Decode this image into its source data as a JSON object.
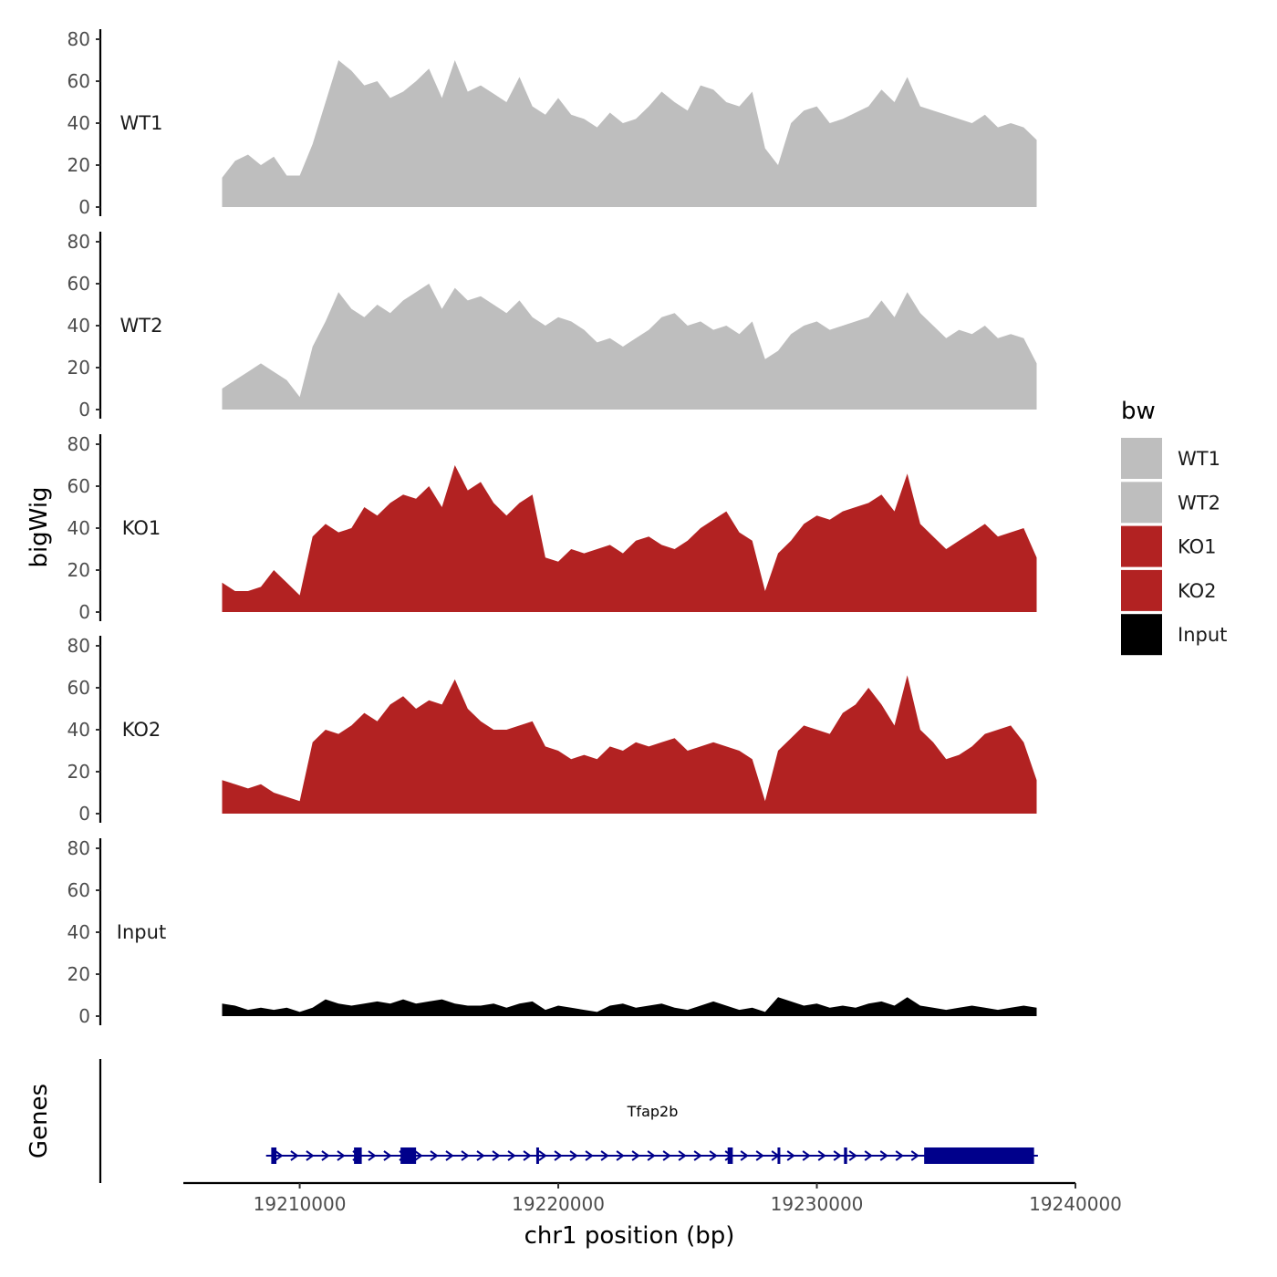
{
  "chart_data": {
    "type": "area",
    "title": "",
    "xlabel": "chr1 position (bp)",
    "ylabel": "bigWig",
    "gene_panel_label": "Genes",
    "xlim": [
      19205500,
      19240000
    ],
    "data_range": [
      19207000,
      19238500
    ],
    "ylim": [
      0,
      85
    ],
    "yticks": [
      0,
      20,
      40,
      60,
      80
    ],
    "xticks": [
      19210000,
      19220000,
      19230000,
      19240000
    ],
    "xtick_labels": [
      "19210000",
      "19220000",
      "19230000",
      "19240000"
    ],
    "legend": {
      "title": "bw",
      "position": "right",
      "entries": [
        {
          "label": "WT1",
          "color": "#bebebe"
        },
        {
          "label": "WT2",
          "color": "#bebebe"
        },
        {
          "label": "KO1",
          "color": "#b22222"
        },
        {
          "label": "KO2",
          "color": "#b22222"
        },
        {
          "label": "Input",
          "color": "#000000"
        }
      ]
    },
    "series": [
      {
        "name": "WT1",
        "color": "#bebebe",
        "x": [
          19207000,
          19207500,
          19208000,
          19208500,
          19209000,
          19209500,
          19210000,
          19210500,
          19211000,
          19211500,
          19212000,
          19212500,
          19213000,
          19213500,
          19214000,
          19214500,
          19215000,
          19215500,
          19216000,
          19216500,
          19217000,
          19217500,
          19218000,
          19218500,
          19219000,
          19219500,
          19220000,
          19220500,
          19221000,
          19221500,
          19222000,
          19222500,
          19223000,
          19223500,
          19224000,
          19224500,
          19225000,
          19225500,
          19226000,
          19226500,
          19227000,
          19227500,
          19228000,
          19228500,
          19229000,
          19229500,
          19230000,
          19230500,
          19231000,
          19231500,
          19232000,
          19232500,
          19233000,
          19233500,
          19234000,
          19234500,
          19235000,
          19235500,
          19236000,
          19236500,
          19237000,
          19237500,
          19238000,
          19238500
        ],
        "values": [
          14,
          22,
          25,
          20,
          24,
          15,
          15,
          30,
          50,
          70,
          65,
          58,
          60,
          52,
          55,
          60,
          66,
          52,
          70,
          55,
          58,
          54,
          50,
          62,
          48,
          44,
          52,
          44,
          42,
          38,
          45,
          40,
          42,
          48,
          55,
          50,
          46,
          58,
          56,
          50,
          48,
          55,
          28,
          20,
          40,
          46,
          48,
          40,
          42,
          45,
          48,
          56,
          50,
          62,
          48,
          46,
          44,
          42,
          40,
          44,
          38,
          40,
          38,
          32
        ]
      },
      {
        "name": "WT2",
        "color": "#bebebe",
        "x": [
          19207000,
          19207500,
          19208000,
          19208500,
          19209000,
          19209500,
          19210000,
          19210500,
          19211000,
          19211500,
          19212000,
          19212500,
          19213000,
          19213500,
          19214000,
          19214500,
          19215000,
          19215500,
          19216000,
          19216500,
          19217000,
          19217500,
          19218000,
          19218500,
          19219000,
          19219500,
          19220000,
          19220500,
          19221000,
          19221500,
          19222000,
          19222500,
          19223000,
          19223500,
          19224000,
          19224500,
          19225000,
          19225500,
          19226000,
          19226500,
          19227000,
          19227500,
          19228000,
          19228500,
          19229000,
          19229500,
          19230000,
          19230500,
          19231000,
          19231500,
          19232000,
          19232500,
          19233000,
          19233500,
          19234000,
          19234500,
          19235000,
          19235500,
          19236000,
          19236500,
          19237000,
          19237500,
          19238000,
          19238500
        ],
        "values": [
          10,
          14,
          18,
          22,
          18,
          14,
          6,
          30,
          42,
          56,
          48,
          44,
          50,
          46,
          52,
          56,
          60,
          48,
          58,
          52,
          54,
          50,
          46,
          52,
          44,
          40,
          44,
          42,
          38,
          32,
          34,
          30,
          34,
          38,
          44,
          46,
          40,
          42,
          38,
          40,
          36,
          42,
          24,
          28,
          36,
          40,
          42,
          38,
          40,
          42,
          44,
          52,
          44,
          56,
          46,
          40,
          34,
          38,
          36,
          40,
          34,
          36,
          34,
          22
        ]
      },
      {
        "name": "KO1",
        "color": "#b22222",
        "x": [
          19207000,
          19207500,
          19208000,
          19208500,
          19209000,
          19209500,
          19210000,
          19210500,
          19211000,
          19211500,
          19212000,
          19212500,
          19213000,
          19213500,
          19214000,
          19214500,
          19215000,
          19215500,
          19216000,
          19216500,
          19217000,
          19217500,
          19218000,
          19218500,
          19219000,
          19219500,
          19220000,
          19220500,
          19221000,
          19221500,
          19222000,
          19222500,
          19223000,
          19223500,
          19224000,
          19224500,
          19225000,
          19225500,
          19226000,
          19226500,
          19227000,
          19227500,
          19228000,
          19228500,
          19229000,
          19229500,
          19230000,
          19230500,
          19231000,
          19231500,
          19232000,
          19232500,
          19233000,
          19233500,
          19234000,
          19234500,
          19235000,
          19235500,
          19236000,
          19236500,
          19237000,
          19237500,
          19238000,
          19238500
        ],
        "values": [
          14,
          10,
          10,
          12,
          20,
          14,
          8,
          36,
          42,
          38,
          40,
          50,
          46,
          52,
          56,
          54,
          60,
          50,
          70,
          58,
          62,
          52,
          46,
          52,
          56,
          26,
          24,
          30,
          28,
          30,
          32,
          28,
          34,
          36,
          32,
          30,
          34,
          40,
          44,
          48,
          38,
          34,
          10,
          28,
          34,
          42,
          46,
          44,
          48,
          50,
          52,
          56,
          48,
          66,
          42,
          36,
          30,
          34,
          38,
          42,
          36,
          38,
          40,
          26
        ]
      },
      {
        "name": "KO2",
        "color": "#b22222",
        "x": [
          19207000,
          19207500,
          19208000,
          19208500,
          19209000,
          19209500,
          19210000,
          19210500,
          19211000,
          19211500,
          19212000,
          19212500,
          19213000,
          19213500,
          19214000,
          19214500,
          19215000,
          19215500,
          19216000,
          19216500,
          19217000,
          19217500,
          19218000,
          19218500,
          19219000,
          19219500,
          19220000,
          19220500,
          19221000,
          19221500,
          19222000,
          19222500,
          19223000,
          19223500,
          19224000,
          19224500,
          19225000,
          19225500,
          19226000,
          19226500,
          19227000,
          19227500,
          19228000,
          19228500,
          19229000,
          19229500,
          19230000,
          19230500,
          19231000,
          19231500,
          19232000,
          19232500,
          19233000,
          19233500,
          19234000,
          19234500,
          19235000,
          19235500,
          19236000,
          19236500,
          19237000,
          19237500,
          19238000,
          19238500
        ],
        "values": [
          16,
          14,
          12,
          14,
          10,
          8,
          6,
          34,
          40,
          38,
          42,
          48,
          44,
          52,
          56,
          50,
          54,
          52,
          64,
          50,
          44,
          40,
          40,
          42,
          44,
          32,
          30,
          26,
          28,
          26,
          32,
          30,
          34,
          32,
          34,
          36,
          30,
          32,
          34,
          32,
          30,
          26,
          6,
          30,
          36,
          42,
          40,
          38,
          48,
          52,
          60,
          52,
          42,
          66,
          40,
          34,
          26,
          28,
          32,
          38,
          40,
          42,
          34,
          16
        ]
      },
      {
        "name": "Input",
        "color": "#000000",
        "x": [
          19207000,
          19207500,
          19208000,
          19208500,
          19209000,
          19209500,
          19210000,
          19210500,
          19211000,
          19211500,
          19212000,
          19212500,
          19213000,
          19213500,
          19214000,
          19214500,
          19215000,
          19215500,
          19216000,
          19216500,
          19217000,
          19217500,
          19218000,
          19218500,
          19219000,
          19219500,
          19220000,
          19220500,
          19221000,
          19221500,
          19222000,
          19222500,
          19223000,
          19223500,
          19224000,
          19224500,
          19225000,
          19225500,
          19226000,
          19226500,
          19227000,
          19227500,
          19228000,
          19228500,
          19229000,
          19229500,
          19230000,
          19230500,
          19231000,
          19231500,
          19232000,
          19232500,
          19233000,
          19233500,
          19234000,
          19234500,
          19235000,
          19235500,
          19236000,
          19236500,
          19237000,
          19237500,
          19238000,
          19238500
        ],
        "values": [
          6,
          5,
          3,
          4,
          3,
          4,
          2,
          4,
          8,
          6,
          5,
          6,
          7,
          6,
          8,
          6,
          7,
          8,
          6,
          5,
          5,
          6,
          4,
          6,
          7,
          3,
          5,
          4,
          3,
          2,
          5,
          6,
          4,
          5,
          6,
          4,
          3,
          5,
          7,
          5,
          3,
          4,
          2,
          9,
          7,
          5,
          6,
          4,
          5,
          4,
          6,
          7,
          5,
          9,
          5,
          4,
          3,
          4,
          5,
          4,
          3,
          4,
          5,
          4
        ]
      }
    ],
    "gene": {
      "name": "Tfap2b",
      "strand": "+",
      "start": 19208900,
      "end": 19238400,
      "exons": [
        {
          "start": 19208900,
          "end": 19209100
        },
        {
          "start": 19212100,
          "end": 19212400
        },
        {
          "start": 19213900,
          "end": 19214500
        },
        {
          "start": 19219150,
          "end": 19219200
        },
        {
          "start": 19226550,
          "end": 19226750
        },
        {
          "start": 19228480,
          "end": 19228580
        },
        {
          "start": 19231050,
          "end": 19231170
        },
        {
          "start": 19234150,
          "end": 19238400
        }
      ],
      "thin_start": 19208700,
      "thin_end": 19238550
    }
  }
}
